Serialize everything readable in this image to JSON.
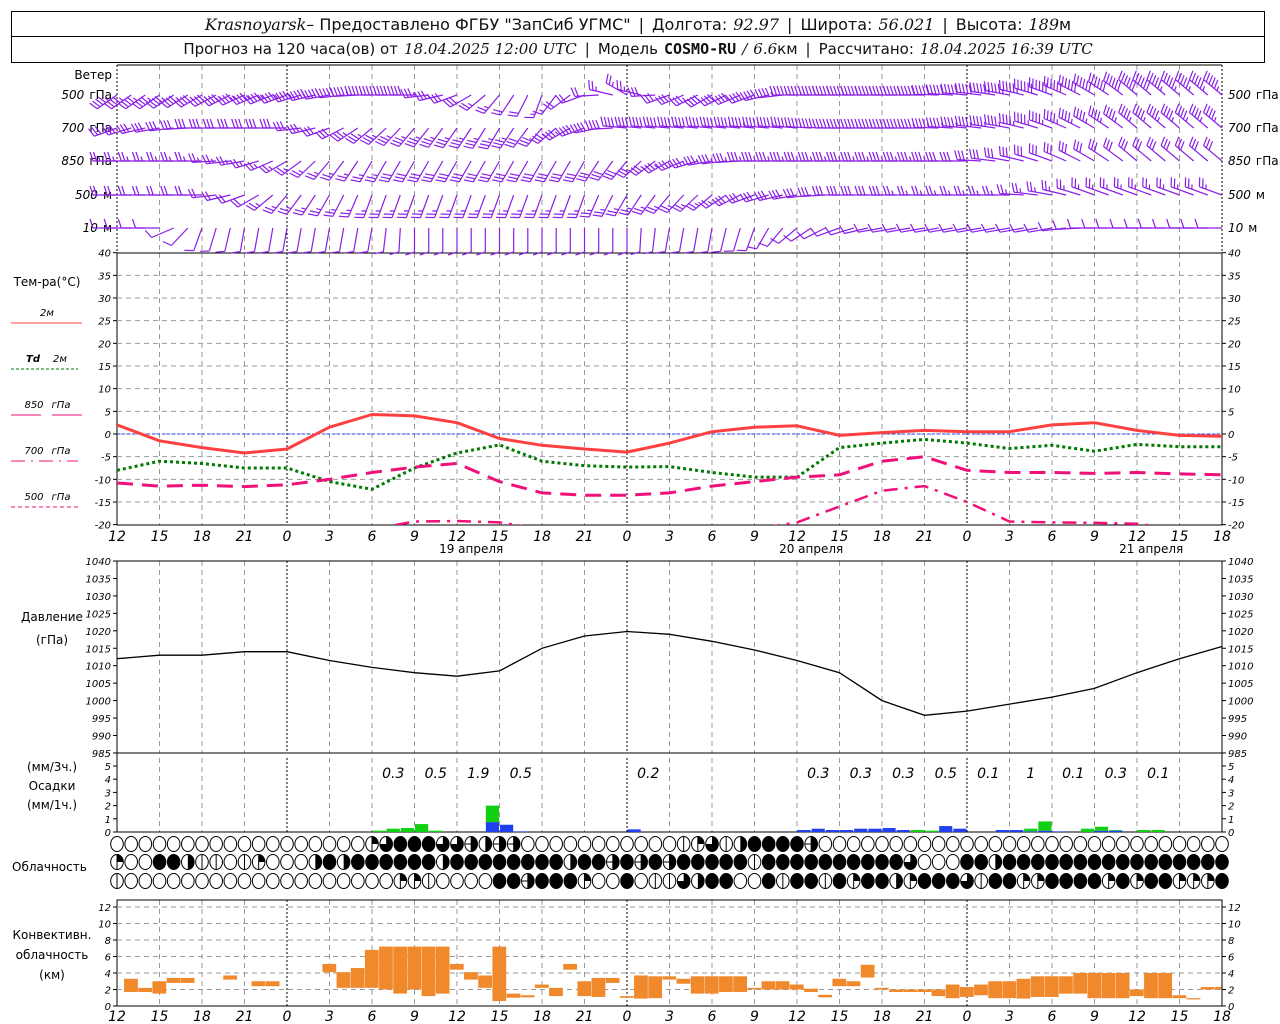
{
  "header": {
    "city": "Krasnoyarsk",
    "provider": " – Предоставлено ФГБУ \"ЗапСиб УГМС\"",
    "sep": "|",
    "lon_label": "Долгота:",
    "lon": "92.97",
    "lat_label": "Широта:",
    "lat": "56.021",
    "alt_label": "Высота:",
    "alt": "189",
    "alt_unit": "м",
    "forecast_label": "Прогноз на 120 часа(ов) от",
    "forecast_time": "18.04.2025 12:00 UTC",
    "model_label": "Модель",
    "model": "COSMO-RU",
    "slash": "/",
    "resolution": "6.6",
    "resolution_unit": "км",
    "computed_label": "Рассчитано:",
    "computed_time": "18.04.2025 16:39 UTC"
  },
  "labels": {
    "wind": "Ветер",
    "temp": "Тем-ра(°C)",
    "pressure": "Давление",
    "pressure_unit": "(гПа)",
    "precip_3h": "(мм/3ч.)",
    "precip": "Осадки",
    "precip_1h": "(мм/1ч.)",
    "clouds": "Облачность",
    "conv1": "Конвективн.",
    "conv2": "облачность",
    "conv3": "(км)"
  },
  "colors": {
    "wind": "#8a1ee6",
    "t2m": "#ff4040",
    "td": "#007a00",
    "p850": "#f0107a",
    "p700": "#f0107a",
    "p500": "#f0107a",
    "zero": "#2040ff",
    "rain": "#10d010",
    "snow": "#2040f0",
    "conv": "#f0882c"
  },
  "chart_data": {
    "type": "line",
    "x": [
      0,
      3,
      6,
      9,
      12,
      15,
      18,
      21,
      24,
      27,
      30,
      33,
      36,
      39,
      42,
      45,
      48,
      51,
      54,
      57,
      60,
      63,
      66,
      69,
      72,
      75,
      78
    ],
    "time_ticks": [
      "12",
      "15",
      "18",
      "21",
      "0",
      "3",
      "6",
      "9",
      "12",
      "15",
      "18",
      "21",
      "0",
      "3",
      "6",
      "9",
      "12",
      "15",
      "18",
      "21",
      "0",
      "3",
      "6",
      "9",
      "12",
      "15",
      "18"
    ],
    "dates": [
      {
        "h": 25,
        "label": "19 апреля"
      },
      {
        "h": 49,
        "label": "20 апреля"
      },
      {
        "h": 73,
        "label": "21 апреля"
      }
    ],
    "wind": {
      "levels": [
        {
          "num": "500",
          "unit": "гПа",
          "dir": [
            235,
            235,
            240,
            245,
            250,
            260,
            270,
            270,
            250,
            220,
            200,
            250,
            300,
            250,
            240,
            250,
            270,
            270,
            270,
            270,
            275,
            280,
            290,
            300,
            310,
            310,
            310
          ],
          "spd": [
            45,
            45,
            45,
            45,
            45,
            50,
            45,
            40,
            30,
            25,
            15,
            20,
            25,
            30,
            40,
            40,
            45,
            50,
            50,
            50,
            50,
            55,
            60,
            60,
            60,
            55,
            55
          ]
        },
        {
          "num": "700",
          "unit": "гПа",
          "dir": [
            250,
            260,
            270,
            270,
            270,
            250,
            230,
            220,
            215,
            210,
            220,
            250,
            275,
            275,
            275,
            275,
            275,
            270,
            270,
            270,
            275,
            280,
            290,
            300,
            310,
            310,
            310
          ],
          "spd": [
            30,
            30,
            30,
            30,
            30,
            30,
            35,
            35,
            35,
            35,
            30,
            40,
            40,
            40,
            40,
            45,
            45,
            45,
            45,
            45,
            45,
            45,
            45,
            45,
            45,
            45,
            45
          ]
        },
        {
          "num": "850",
          "unit": "гПа",
          "dir": [
            270,
            270,
            270,
            260,
            240,
            220,
            210,
            210,
            210,
            210,
            210,
            210,
            220,
            240,
            260,
            270,
            270,
            270,
            270,
            270,
            270,
            280,
            290,
            300,
            310,
            310,
            310
          ],
          "spd": [
            25,
            25,
            25,
            25,
            25,
            25,
            25,
            30,
            30,
            30,
            30,
            30,
            30,
            35,
            35,
            35,
            35,
            35,
            35,
            35,
            30,
            30,
            30,
            30,
            30,
            30,
            30
          ]
        },
        {
          "num": "500",
          "unit": "м",
          "dir": [
            270,
            270,
            270,
            250,
            220,
            210,
            200,
            200,
            200,
            200,
            200,
            200,
            210,
            220,
            230,
            250,
            260,
            270,
            270,
            270,
            270,
            270,
            280,
            290,
            290,
            290,
            290
          ],
          "spd": [
            20,
            20,
            20,
            20,
            25,
            25,
            25,
            25,
            25,
            25,
            25,
            25,
            25,
            25,
            25,
            30,
            30,
            30,
            30,
            25,
            25,
            25,
            25,
            25,
            25,
            25,
            25
          ]
        },
        {
          "num": "10",
          "unit": "м",
          "dir": [
            270,
            270,
            200,
            190,
            190,
            190,
            190,
            180,
            180,
            180,
            180,
            180,
            180,
            190,
            190,
            200,
            230,
            250,
            260,
            260,
            260,
            260,
            260,
            270,
            270,
            270,
            270
          ],
          "spd": [
            10,
            10,
            10,
            10,
            10,
            10,
            10,
            10,
            10,
            10,
            10,
            10,
            10,
            10,
            10,
            10,
            10,
            10,
            10,
            10,
            10,
            10,
            10,
            10,
            10,
            10,
            10
          ]
        }
      ]
    },
    "temperature": {
      "ylim": [
        -20,
        40
      ],
      "ticks": [
        "-20",
        "-15",
        "-10",
        "-5",
        "0",
        "5",
        "10",
        "15",
        "20",
        "25",
        "30",
        "35",
        "40"
      ],
      "series": [
        {
          "name": "2м",
          "values": [
            2,
            -1.5,
            -3,
            -4.2,
            -3.3,
            1.5,
            4.3,
            4,
            2.5,
            -1,
            -2.5,
            -3.3,
            -4,
            -2,
            0.5,
            1.5,
            1.8,
            -0.3,
            0.3,
            0.8,
            0.5,
            0.5,
            2,
            2.5,
            0.8,
            -0.3,
            -0.5
          ]
        },
        {
          "name": "Td",
          "name2": "2м",
          "values": [
            -8,
            -6,
            -6.5,
            -7.5,
            -7.5,
            -10.5,
            -12.2,
            -7.5,
            -4.2,
            -2.4,
            -6,
            -7,
            -7.3,
            -7.2,
            -8.5,
            -9.5,
            -9.5,
            -3,
            -2,
            -1.2,
            -2,
            -3.2,
            -2.5,
            -3.8,
            -2.3,
            -2.8,
            -2.8
          ]
        },
        {
          "name": "850",
          "name2": "гПа",
          "values": [
            -10.8,
            -11.5,
            -11.3,
            -11.6,
            -11.2,
            -10,
            -8.5,
            -7.3,
            -6.5,
            -10.5,
            -13,
            -13.5,
            -13.5,
            -13,
            -11.5,
            -10.5,
            -9.5,
            -9,
            -6,
            -5,
            -8,
            -8.5,
            -8.5,
            -8.7,
            -8.5,
            -8.8,
            -9
          ]
        },
        {
          "name": "700",
          "name2": "гПа",
          "values": [
            -22,
            -22,
            -22,
            -22,
            -22,
            -22,
            -21,
            -19.3,
            -19.2,
            -19.5,
            -21,
            -22,
            -22,
            -22,
            -22,
            -21,
            -19.5,
            -16,
            -12.5,
            -11.5,
            -15,
            -19.3,
            -19.5,
            -19.6,
            -19.8,
            -21,
            -22
          ]
        },
        {
          "name": "500",
          "name2": "гПа",
          "values": []
        }
      ]
    },
    "pressure": {
      "ylim": [
        985,
        1040
      ],
      "ticks": [
        "985",
        "990",
        "995",
        "1000",
        "1005",
        "1010",
        "1015",
        "1020",
        "1025",
        "1030",
        "1035",
        "1040"
      ],
      "values": [
        1012,
        1013,
        1013,
        1014,
        1014,
        1011.5,
        1009.5,
        1008,
        1007,
        1008.5,
        1015,
        1018.5,
        1019.8,
        1019,
        1017,
        1014.5,
        1011.5,
        1008,
        1000,
        995.8,
        997,
        999,
        1001,
        1003.5,
        1008,
        1012,
        1015.5
      ]
    },
    "precipitation": {
      "ylim": [
        0,
        5
      ],
      "ticks": [
        "0",
        "1",
        "2",
        "3",
        "4",
        "5"
      ],
      "totals_3h": [
        {
          "h": 18,
          "v": "0.3"
        },
        {
          "h": 21,
          "v": "0.5"
        },
        {
          "h": 24,
          "v": "1.9"
        },
        {
          "h": 27,
          "v": "0.5"
        },
        {
          "h": 36,
          "v": "0.2"
        },
        {
          "h": 48,
          "v": "0.3"
        },
        {
          "h": 51,
          "v": "0.3"
        },
        {
          "h": 54,
          "v": "0.3"
        },
        {
          "h": 57,
          "v": "0.5"
        },
        {
          "h": 60,
          "v": "0.1"
        },
        {
          "h": 63,
          "v": "1"
        },
        {
          "h": 66,
          "v": "0.1"
        },
        {
          "h": 69,
          "v": "0.3"
        },
        {
          "h": 72,
          "v": "0.1"
        }
      ],
      "hourly": [
        {
          "h": 18,
          "rain": 0.1,
          "snow": 0
        },
        {
          "h": 19,
          "rain": 0.25,
          "snow": 0
        },
        {
          "h": 20,
          "rain": 0.3,
          "snow": 0
        },
        {
          "h": 21,
          "rain": 0.6,
          "snow": 0
        },
        {
          "h": 22,
          "rain": 0.1,
          "snow": 0
        },
        {
          "h": 26,
          "rain": 1.25,
          "snow": 0.75
        },
        {
          "h": 27,
          "rain": 0,
          "snow": 0.55
        },
        {
          "h": 28,
          "rain": 0,
          "snow": 0.05
        },
        {
          "h": 36,
          "rain": 0,
          "snow": 0.2
        },
        {
          "h": 48,
          "rain": 0,
          "snow": 0.15
        },
        {
          "h": 49,
          "rain": 0,
          "snow": 0.25
        },
        {
          "h": 50,
          "rain": 0,
          "snow": 0.15
        },
        {
          "h": 51,
          "rain": 0,
          "snow": 0.15
        },
        {
          "h": 52,
          "rain": 0,
          "snow": 0.25
        },
        {
          "h": 53,
          "rain": 0,
          "snow": 0.25
        },
        {
          "h": 54,
          "rain": 0,
          "snow": 0.3
        },
        {
          "h": 55,
          "rain": 0,
          "snow": 0.15
        },
        {
          "h": 56,
          "rain": 0.15,
          "snow": 0
        },
        {
          "h": 57,
          "rain": 0.1,
          "snow": 0
        },
        {
          "h": 58,
          "rain": 0,
          "snow": 0.45
        },
        {
          "h": 59,
          "rain": 0,
          "snow": 0.25
        },
        {
          "h": 62,
          "rain": 0,
          "snow": 0.15
        },
        {
          "h": 63,
          "rain": 0,
          "snow": 0.15
        },
        {
          "h": 64,
          "rain": 0.2,
          "snow": 0.05
        },
        {
          "h": 65,
          "rain": 0.7,
          "snow": 0.1
        },
        {
          "h": 66,
          "rain": 0,
          "snow": 0.05
        },
        {
          "h": 68,
          "rain": 0.25,
          "snow": 0
        },
        {
          "h": 69,
          "rain": 0.3,
          "snow": 0.1
        },
        {
          "h": 70,
          "rain": 0.05,
          "snow": 0.1
        },
        {
          "h": 72,
          "rain": 0.15,
          "snow": 0
        },
        {
          "h": 73,
          "rain": 0.15,
          "snow": 0
        }
      ]
    },
    "cloudiness": {
      "rows": [
        "ooooooooooooooooooqtffftteb",
        "qooffbhhohqooobfbffffffbffffffffbffefefefffffhfffffffffftoooffbffffffffffffffff",
        "hoooooooooooooooooooqqhooooffefffqoofohhtbffoofhffhfqffbqfffthffqqffffqfqffqqqf"
      ],
      "row1_tail": "eeooooooooooohqthbffffeooooooooooooooooooooooooooooo"
    },
    "convective": {
      "ylim": [
        0,
        13
      ],
      "ticks": [
        "0",
        "2",
        "4",
        "6",
        "8",
        "10",
        "12"
      ],
      "bars": [
        [
          1,
          3.3,
          1.7
        ],
        [
          2,
          2.2,
          1.7
        ],
        [
          3,
          3.0,
          1.5
        ],
        [
          4,
          3.4,
          2.8
        ],
        [
          5,
          3.4,
          2.8
        ],
        [
          8,
          3.7,
          3.2
        ],
        [
          10,
          3.0,
          2.4
        ],
        [
          11,
          3.0,
          2.4
        ],
        [
          15,
          5.1,
          4.1
        ],
        [
          16,
          4.1,
          2.2
        ],
        [
          17,
          4.6,
          2.2
        ],
        [
          18,
          6.8,
          2.2
        ],
        [
          19,
          7.2,
          2.0
        ],
        [
          20,
          7.2,
          1.5
        ],
        [
          21,
          7.2,
          2.0
        ],
        [
          22,
          7.2,
          1.2
        ],
        [
          23,
          7.2,
          1.5
        ],
        [
          24,
          5.1,
          4.4
        ],
        [
          25,
          4.1,
          3.2
        ],
        [
          26,
          3.7,
          2.2
        ],
        [
          27,
          7.2,
          0.6
        ],
        [
          28,
          1.5,
          1.0
        ],
        [
          29,
          1.3,
          1.05
        ],
        [
          30,
          2.6,
          2.2
        ],
        [
          31,
          2.2,
          1.2
        ],
        [
          32,
          5.1,
          4.4
        ],
        [
          33,
          3.0,
          1.2
        ],
        [
          34,
          3.4,
          1.1
        ],
        [
          35,
          3.4,
          2.8
        ],
        [
          36,
          1.2,
          1.0
        ],
        [
          37,
          3.7,
          0.9
        ],
        [
          38,
          3.6,
          0.95
        ],
        [
          39,
          3.6,
          3.2
        ],
        [
          40,
          3.3,
          2.7
        ],
        [
          41,
          3.6,
          1.5
        ],
        [
          42,
          3.6,
          1.5
        ],
        [
          43,
          3.6,
          1.7
        ],
        [
          44,
          3.6,
          1.7
        ],
        [
          45,
          2.2,
          2.0
        ],
        [
          46,
          3.0,
          2.0
        ],
        [
          47,
          3.0,
          2.0
        ],
        [
          48,
          2.6,
          2.0
        ],
        [
          49,
          2.1,
          1.7
        ],
        [
          50,
          1.35,
          1.05
        ],
        [
          51,
          3.3,
          2.4
        ],
        [
          52,
          3.0,
          2.4
        ],
        [
          53,
          5.0,
          3.45
        ],
        [
          54,
          2.2,
          2.0
        ],
        [
          55,
          2.0,
          1.7
        ],
        [
          56,
          2.0,
          1.7
        ],
        [
          57,
          2.0,
          1.7
        ],
        [
          58,
          2.0,
          1.2
        ],
        [
          59,
          2.6,
          0.95
        ],
        [
          60,
          2.3,
          1.1
        ],
        [
          61,
          2.6,
          1.3
        ],
        [
          62,
          3.0,
          0.95
        ],
        [
          63,
          3.0,
          0.95
        ],
        [
          64,
          3.3,
          0.9
        ],
        [
          65,
          3.6,
          1.1
        ],
        [
          66,
          3.6,
          1.1
        ],
        [
          67,
          3.6,
          1.5
        ],
        [
          68,
          4.0,
          1.5
        ],
        [
          69,
          4.0,
          0.95
        ],
        [
          70,
          4.0,
          0.95
        ],
        [
          71,
          4.0,
          0.95
        ],
        [
          72,
          2.0,
          1.2
        ],
        [
          73,
          4.0,
          0.95
        ],
        [
          74,
          4.0,
          0.95
        ],
        [
          75,
          1.3,
          0.95
        ],
        [
          76,
          0.95,
          0.8
        ],
        [
          77,
          2.3,
          2.0
        ],
        [
          78,
          2.3,
          2.0
        ]
      ]
    }
  }
}
